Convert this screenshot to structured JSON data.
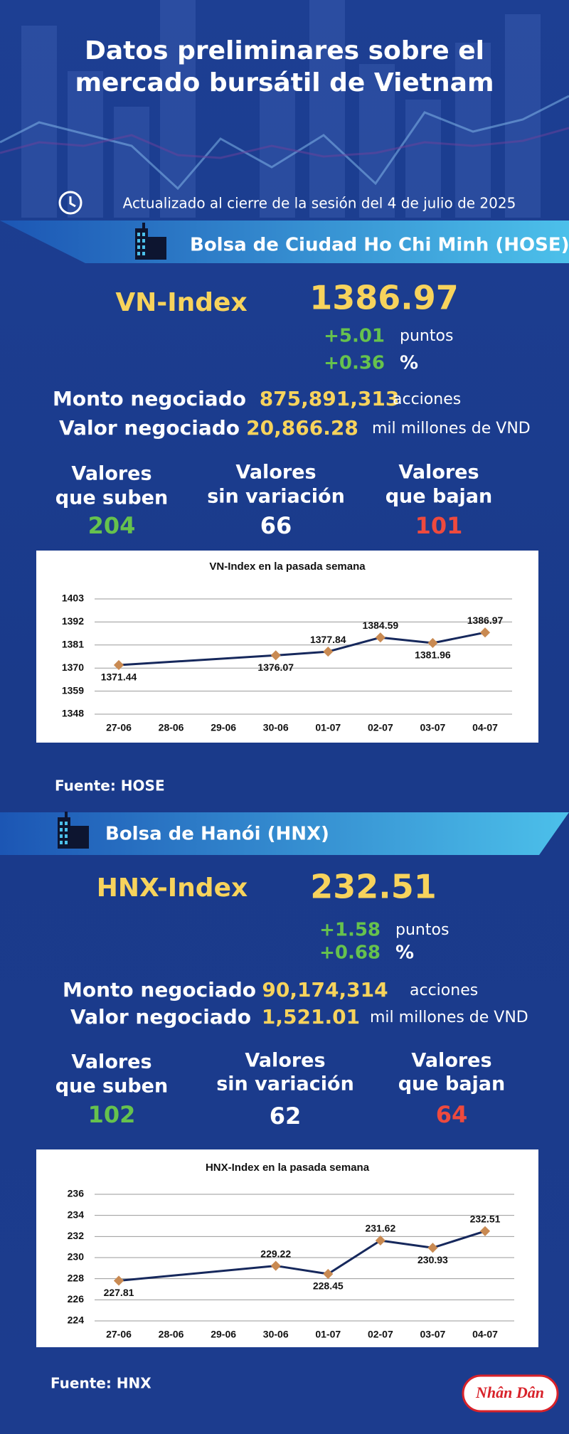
{
  "header": {
    "title_lines": [
      "Datos preliminares sobre el",
      "mercado bursátil de Vietnam"
    ],
    "updated": "Actualizado al cierre de la sesión del 4 de julio de 2025"
  },
  "hose": {
    "exchange": "Bolsa de Ciudad Ho Chi Minh (HOSE)",
    "index_name": "VN-Index",
    "index_value": "1386.97",
    "change_points": "+5.01",
    "points_unit": "puntos",
    "change_percent": "+0.36",
    "percent_unit": "%",
    "volume_label": "Monto negociado",
    "volume": "875,891,313",
    "volume_unit": "acciones",
    "value_label": "Valor negociado",
    "value": "20,866.28",
    "value_unit": "mil millones de VND",
    "breadth": [
      {
        "label": [
          "Valores",
          "que suben"
        ],
        "count": "204"
      },
      {
        "label": [
          "Valores",
          "sin variación"
        ],
        "count": "66"
      },
      {
        "label": [
          "Valores",
          "que bajan"
        ],
        "count": "101"
      }
    ],
    "source": "Fuente: HOSE"
  },
  "hnx": {
    "exchange": "Bolsa de Hanói (HNX)",
    "index_name": "HNX-Index",
    "index_value": "232.51",
    "change_points": "+1.58",
    "points_unit": "puntos",
    "change_percent": "+0.68",
    "percent_unit": "%",
    "volume_label": "Monto negociado",
    "volume": "90,174,314",
    "volume_unit": "acciones",
    "value_label": "Valor negociado",
    "value": "1,521.01",
    "value_unit": "mil millones de VND",
    "breadth": [
      {
        "label": [
          "Valores",
          "que suben"
        ],
        "count": "102"
      },
      {
        "label": [
          "Valores",
          "sin variación"
        ],
        "count": "62"
      },
      {
        "label": [
          "Valores",
          "que bajan"
        ],
        "count": "64"
      }
    ],
    "source": "Fuente:  HNX"
  },
  "chart_data": [
    {
      "type": "line",
      "title": "VN-Index en la pasada semana",
      "categories": [
        "27-06",
        "28-06",
        "29-06",
        "30-06",
        "01-07",
        "02-07",
        "03-07",
        "04-07"
      ],
      "series": [
        {
          "name": "VN-Index",
          "color": "#16285c",
          "marker_color": "#c98a52",
          "values": [
            1371.44,
            null,
            null,
            1376.07,
            1377.84,
            1384.59,
            1381.96,
            1386.97
          ]
        }
      ],
      "ylim": [
        1348,
        1403
      ],
      "yticks": [
        1348,
        1359,
        1370,
        1381,
        1392,
        1403
      ],
      "grid": true
    },
    {
      "type": "line",
      "title": "HNX-Index en la pasada semana",
      "categories": [
        "27-06",
        "28-06",
        "29-06",
        "30-06",
        "01-07",
        "02-07",
        "03-07",
        "04-07"
      ],
      "series": [
        {
          "name": "HNX-Index",
          "color": "#16285c",
          "marker_color": "#c98a52",
          "values": [
            227.81,
            null,
            null,
            229.22,
            228.45,
            231.62,
            230.93,
            232.51
          ]
        }
      ],
      "ylim": [
        224,
        236
      ],
      "yticks": [
        224,
        226,
        228,
        230,
        232,
        234,
        236
      ],
      "grid": true
    }
  ],
  "logo": "Nhân Dân"
}
